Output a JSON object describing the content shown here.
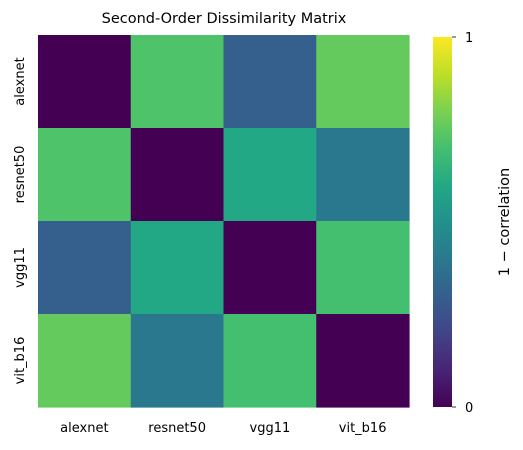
{
  "chart_data": {
    "type": "heatmap",
    "title": "Second-Order Dissimilarity Matrix",
    "x_categories": [
      "alexnet",
      "resnet50",
      "vgg11",
      "vit_b16"
    ],
    "y_categories": [
      "alexnet",
      "resnet50",
      "vgg11",
      "vit_b16"
    ],
    "values": [
      [
        0.0,
        0.72,
        0.3,
        0.76
      ],
      [
        0.72,
        0.0,
        0.6,
        0.4
      ],
      [
        0.3,
        0.6,
        0.0,
        0.7
      ],
      [
        0.76,
        0.4,
        0.7,
        0.0
      ]
    ],
    "colormap": "viridis",
    "vmin": 0,
    "vmax": 1,
    "colorbar": {
      "label": "1 − correlation",
      "tick_labels": [
        "0",
        "1"
      ],
      "tick_values": [
        0,
        1
      ]
    }
  }
}
